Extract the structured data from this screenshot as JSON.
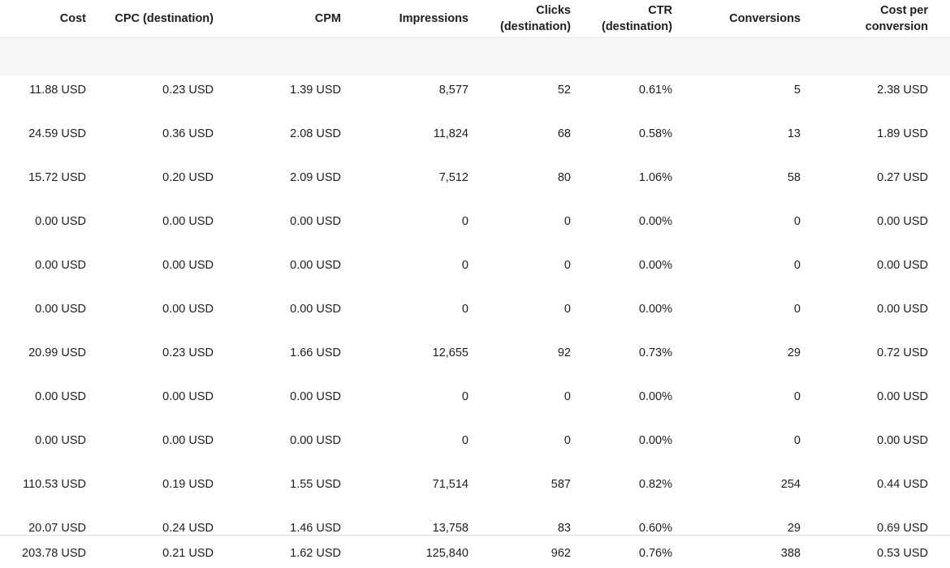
{
  "table": {
    "columns": [
      {
        "key": "cost",
        "label": "Cost"
      },
      {
        "key": "cpc",
        "label": "CPC (destination)"
      },
      {
        "key": "cpm",
        "label": "CPM"
      },
      {
        "key": "impressions",
        "label": "Impressions"
      },
      {
        "key": "clicks",
        "label": "Clicks\n(destination)"
      },
      {
        "key": "ctr",
        "label": "CTR\n(destination)"
      },
      {
        "key": "conversions",
        "label": "Conversions"
      },
      {
        "key": "cost_per_conversion",
        "label": "Cost per\nconversion"
      }
    ],
    "rows": [
      [
        "11.88 USD",
        "0.23 USD",
        "1.39 USD",
        "8,577",
        "52",
        "0.61%",
        "5",
        "2.38 USD"
      ],
      [
        "24.59 USD",
        "0.36 USD",
        "2.08 USD",
        "11,824",
        "68",
        "0.58%",
        "13",
        "1.89 USD"
      ],
      [
        "15.72 USD",
        "0.20 USD",
        "2.09 USD",
        "7,512",
        "80",
        "1.06%",
        "58",
        "0.27 USD"
      ],
      [
        "0.00 USD",
        "0.00 USD",
        "0.00 USD",
        "0",
        "0",
        "0.00%",
        "0",
        "0.00 USD"
      ],
      [
        "0.00 USD",
        "0.00 USD",
        "0.00 USD",
        "0",
        "0",
        "0.00%",
        "0",
        "0.00 USD"
      ],
      [
        "0.00 USD",
        "0.00 USD",
        "0.00 USD",
        "0",
        "0",
        "0.00%",
        "0",
        "0.00 USD"
      ],
      [
        "20.99 USD",
        "0.23 USD",
        "1.66 USD",
        "12,655",
        "92",
        "0.73%",
        "29",
        "0.72 USD"
      ],
      [
        "0.00 USD",
        "0.00 USD",
        "0.00 USD",
        "0",
        "0",
        "0.00%",
        "0",
        "0.00 USD"
      ],
      [
        "0.00 USD",
        "0.00 USD",
        "0.00 USD",
        "0",
        "0",
        "0.00%",
        "0",
        "0.00 USD"
      ],
      [
        "110.53 USD",
        "0.19 USD",
        "1.55 USD",
        "71,514",
        "587",
        "0.82%",
        "254",
        "0.44 USD"
      ],
      [
        "20.07 USD",
        "0.24 USD",
        "1.46 USD",
        "13,758",
        "83",
        "0.60%",
        "29",
        "0.69 USD"
      ]
    ],
    "totals": [
      "203.78 USD",
      "0.21 USD",
      "1.62 USD",
      "125,840",
      "962",
      "0.76%",
      "388",
      "0.53 USD"
    ]
  }
}
